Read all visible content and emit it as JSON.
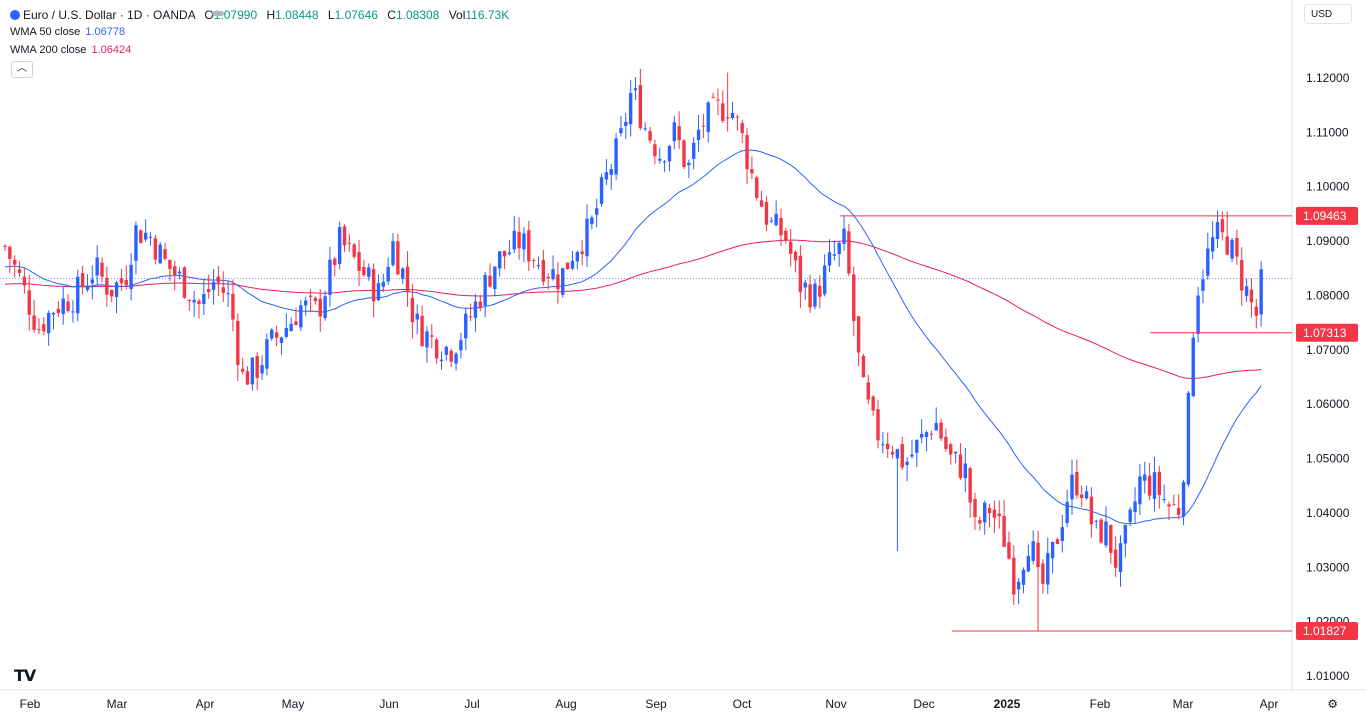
{
  "header": {
    "symbol": "Euro / U.S. Dollar · 1D · OANDA",
    "open_label": "O",
    "open": "1.07990",
    "high_label": "H",
    "high": "1.08448",
    "low_label": "L",
    "low": "1.07646",
    "close_label": "C",
    "close": "1.08308",
    "vol_label": "Vol",
    "vol": "116.73K"
  },
  "indicators": {
    "wma50": {
      "label": "WMA 50 close",
      "value": "1.06778",
      "color": "#2962ff"
    },
    "wma200": {
      "label": "WMA 200 close",
      "value": "1.06424",
      "color": "#e91e63"
    }
  },
  "currency": "USD",
  "collapse_icon": "chevron-up-icon",
  "colors": {
    "up": "#2962ff",
    "down": "#f23645",
    "line": "#f23645"
  },
  "chart_data": {
    "type": "candlestick",
    "y_ticks": [
      "1.12000",
      "1.11000",
      "1.10000",
      "1.09000",
      "1.08000",
      "1.07000",
      "1.06000",
      "1.05000",
      "1.04000",
      "1.03000",
      "1.02000",
      "1.01000"
    ],
    "ylim": [
      1.005,
      1.125
    ],
    "x_labels": [
      "Feb",
      "Mar",
      "Apr",
      "May",
      "Jun",
      "Jul",
      "Aug",
      "Sep",
      "Oct",
      "Nov",
      "Dec",
      "2025",
      "Feb",
      "Mar",
      "Apr"
    ],
    "horizontal_levels": [
      {
        "value": 1.09463,
        "label": "1.09463"
      },
      {
        "value": 1.07313,
        "label": "1.07313"
      },
      {
        "value": 1.01827,
        "label": "1.01827"
      }
    ],
    "last_price": 1.08308,
    "grid": false
  }
}
